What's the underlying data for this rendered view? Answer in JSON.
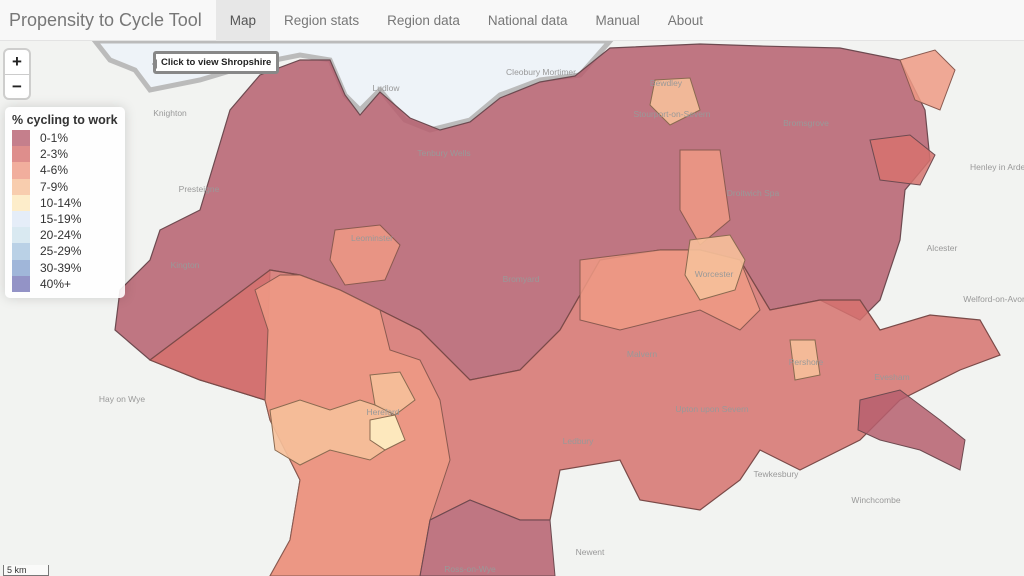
{
  "navbar": {
    "brand": "Propensity to Cycle Tool",
    "tabs": [
      {
        "label": "Map",
        "active": true
      },
      {
        "label": "Region stats"
      },
      {
        "label": "Region data"
      },
      {
        "label": "National data"
      },
      {
        "label": "Manual"
      },
      {
        "label": "About"
      }
    ]
  },
  "map": {
    "zoom_in": "+",
    "zoom_out": "−",
    "tooltip": "Click to view Shropshire",
    "scale": "5 km",
    "legend": {
      "title": "% cycling to work",
      "items": [
        {
          "label": "0-1%",
          "color": "#b65f6f"
        },
        {
          "label": "2-3%",
          "color": "#d6726f"
        },
        {
          "label": "4-6%",
          "color": "#ee9a85"
        },
        {
          "label": "7-9%",
          "color": "#f6c09a"
        },
        {
          "label": "10-14%",
          "color": "#fde8bd"
        },
        {
          "label": "15-19%",
          "color": "#dfe8f6"
        },
        {
          "label": "20-24%",
          "color": "#cfe4ee"
        },
        {
          "label": "25-29%",
          "color": "#a9c6e0"
        },
        {
          "label": "30-39%",
          "color": "#88a4cf"
        },
        {
          "label": "40%+",
          "color": "#7878b8"
        }
      ]
    },
    "places": [
      "Knighton",
      "Ludlow",
      "Cleobury Mortimer",
      "Bewdley",
      "Stourport-on-Severn",
      "Bromsgrove",
      "Droitwich Spa",
      "Henley in Arden",
      "Presteigne",
      "Tenbury Wells",
      "Leominster",
      "Kington",
      "Bromyard",
      "Worcester",
      "Alcester",
      "Welford-on-Avon",
      "Malvern",
      "Pershore",
      "Hay on Wye",
      "Hereford",
      "Ledbury",
      "Upton upon Severn",
      "Evesham",
      "Tewkesbury",
      "Winchcombe",
      "Newent",
      "Ross-on-Wye"
    ]
  }
}
